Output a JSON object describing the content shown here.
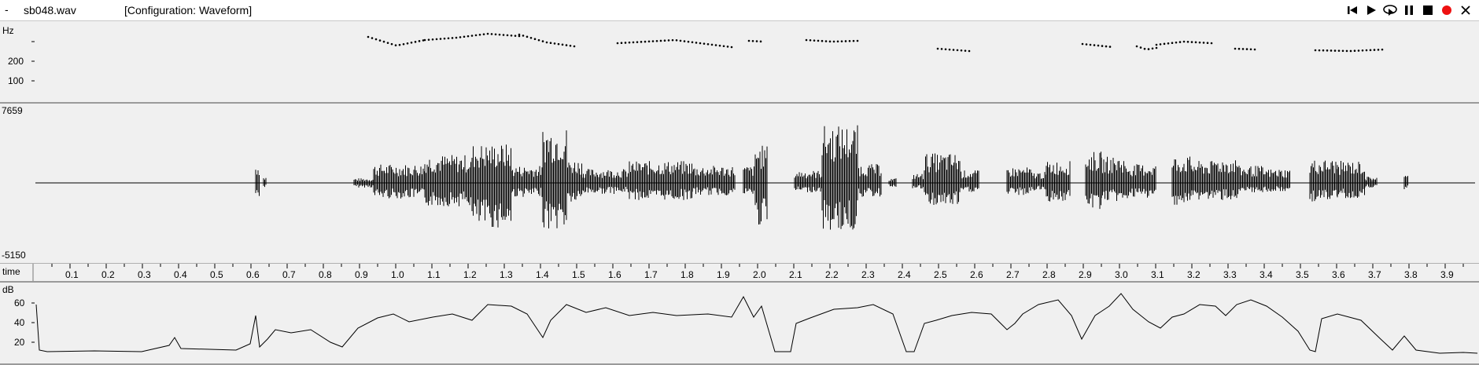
{
  "window": {
    "menu_glyph": "-",
    "file_name": "sb048.wav",
    "configuration": "[Configuration: Waveform]"
  },
  "controls": [
    {
      "name": "skip-to-start-icon",
      "color": "#000000"
    },
    {
      "name": "play-icon",
      "color": "#000000"
    },
    {
      "name": "loop-play-icon",
      "color": "#000000"
    },
    {
      "name": "pause-icon",
      "color": "#000000"
    },
    {
      "name": "stop-icon",
      "color": "#000000"
    },
    {
      "name": "record-icon",
      "color": "#ee1111"
    },
    {
      "name": "close-icon",
      "color": "#000000"
    }
  ],
  "pitch_panel": {
    "unit": "Hz",
    "ticks": [
      "200",
      "100"
    ]
  },
  "waveform_panel": {
    "max_label": "7659",
    "min_label": "-5150"
  },
  "time_axis": {
    "label": "time",
    "ticks": [
      "0.1",
      "0.2",
      "0.3",
      "0.4",
      "0.5",
      "0.6",
      "0.7",
      "0.8",
      "0.9",
      "1.0",
      "1.1",
      "1.2",
      "1.3",
      "1.4",
      "1.5",
      "1.6",
      "1.7",
      "1.8",
      "1.9",
      "2.0",
      "2.1",
      "2.2",
      "2.3",
      "2.4",
      "2.5",
      "2.6",
      "2.7",
      "2.8",
      "2.9",
      "3.0",
      "3.1",
      "3.2",
      "3.3",
      "3.4",
      "3.5",
      "3.6",
      "3.7",
      "3.8",
      "3.9"
    ]
  },
  "energy_panel": {
    "unit": "dB",
    "ticks": [
      "60",
      "40",
      "20"
    ]
  }
}
